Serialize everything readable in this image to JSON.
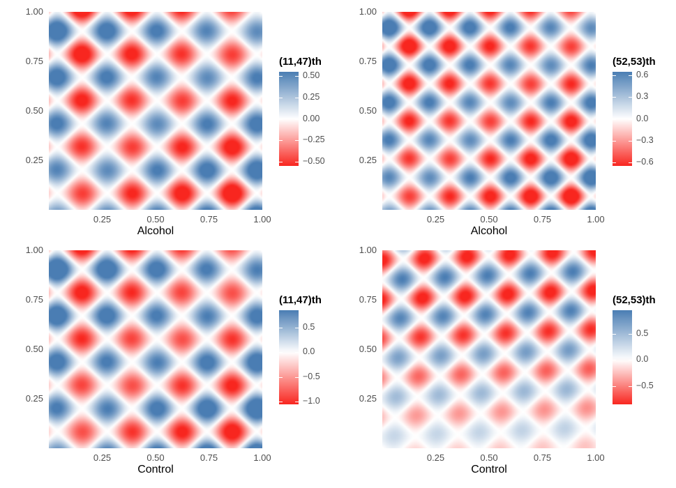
{
  "chart_data": [
    {
      "type": "heatmap",
      "panel": "top-left",
      "xlabel": "Alcohol",
      "xticks": [
        "0.25",
        "0.50",
        "0.75",
        "1.00"
      ],
      "yticks": [
        "1.00",
        "0.75",
        "0.50",
        "0.25"
      ],
      "xlim": [
        0,
        1
      ],
      "ylim": [
        0,
        1
      ],
      "legend": {
        "title": "(11,47)th",
        "range": [
          -0.55,
          0.55
        ],
        "ticks": [
          {
            "label": "0.50",
            "value": 0.5
          },
          {
            "label": "0.25",
            "value": 0.25
          },
          {
            "label": "0.00",
            "value": 0
          },
          {
            "label": "−0.25",
            "value": -0.25
          },
          {
            "label": "−0.50",
            "value": -0.5
          }
        ]
      },
      "amplitude": 0.55,
      "freq": 8.5,
      "pattern": "diag"
    },
    {
      "type": "heatmap",
      "panel": "top-right",
      "xlabel": "Alcohol",
      "xticks": [
        "0.25",
        "0.50",
        "0.75",
        "1.00"
      ],
      "yticks": [
        "1.00",
        "0.75",
        "0.50",
        "0.25"
      ],
      "xlim": [
        0,
        1
      ],
      "ylim": [
        0,
        1
      ],
      "legend": {
        "title": "(52,53)th",
        "range": [
          -0.65,
          0.65
        ],
        "ticks": [
          {
            "label": "0.6",
            "value": 0.6
          },
          {
            "label": "0.3",
            "value": 0.3
          },
          {
            "label": "0.0",
            "value": 0
          },
          {
            "label": "−0.3",
            "value": -0.3
          },
          {
            "label": "−0.6",
            "value": -0.6
          }
        ]
      },
      "amplitude": 0.65,
      "freq": 10.5,
      "pattern": "diag"
    },
    {
      "type": "heatmap",
      "panel": "bottom-left",
      "xlabel": "Control",
      "xticks": [
        "0.25",
        "0.50",
        "0.75",
        "1.00"
      ],
      "yticks": [
        "1.00",
        "0.75",
        "0.50",
        "0.25"
      ],
      "xlim": [
        0,
        1
      ],
      "ylim": [
        0,
        1
      ],
      "legend": {
        "title": "(11,47)th",
        "range": [
          -1.05,
          0.85
        ],
        "ticks": [
          {
            "label": "0.5",
            "value": 0.5
          },
          {
            "label": "0.0",
            "value": 0
          },
          {
            "label": "−0.5",
            "value": -0.5
          },
          {
            "label": "−1.0",
            "value": -1.0
          }
        ]
      },
      "amplitude": 0.95,
      "freq": 8.5,
      "pattern": "diag"
    },
    {
      "type": "heatmap",
      "panel": "bottom-right",
      "xlabel": "Control",
      "xticks": [
        "0.25",
        "0.50",
        "0.75",
        "1.00"
      ],
      "yticks": [
        "1.00",
        "0.75",
        "0.50",
        "0.25"
      ],
      "xlim": [
        0,
        1
      ],
      "ylim": [
        0,
        1
      ],
      "legend": {
        "title": "(52,53)th",
        "range": [
          -0.85,
          0.95
        ],
        "ticks": [
          {
            "label": "0.5",
            "value": 0.5
          },
          {
            "label": "0.0",
            "value": 0
          },
          {
            "label": "−0.5",
            "value": -0.5
          }
        ]
      },
      "amplitude": 0.95,
      "freq": 9.5,
      "pattern": "fan"
    }
  ],
  "colors": {
    "low": "#f8261f",
    "mid": "#ffffff",
    "high": "#4a7db3"
  }
}
